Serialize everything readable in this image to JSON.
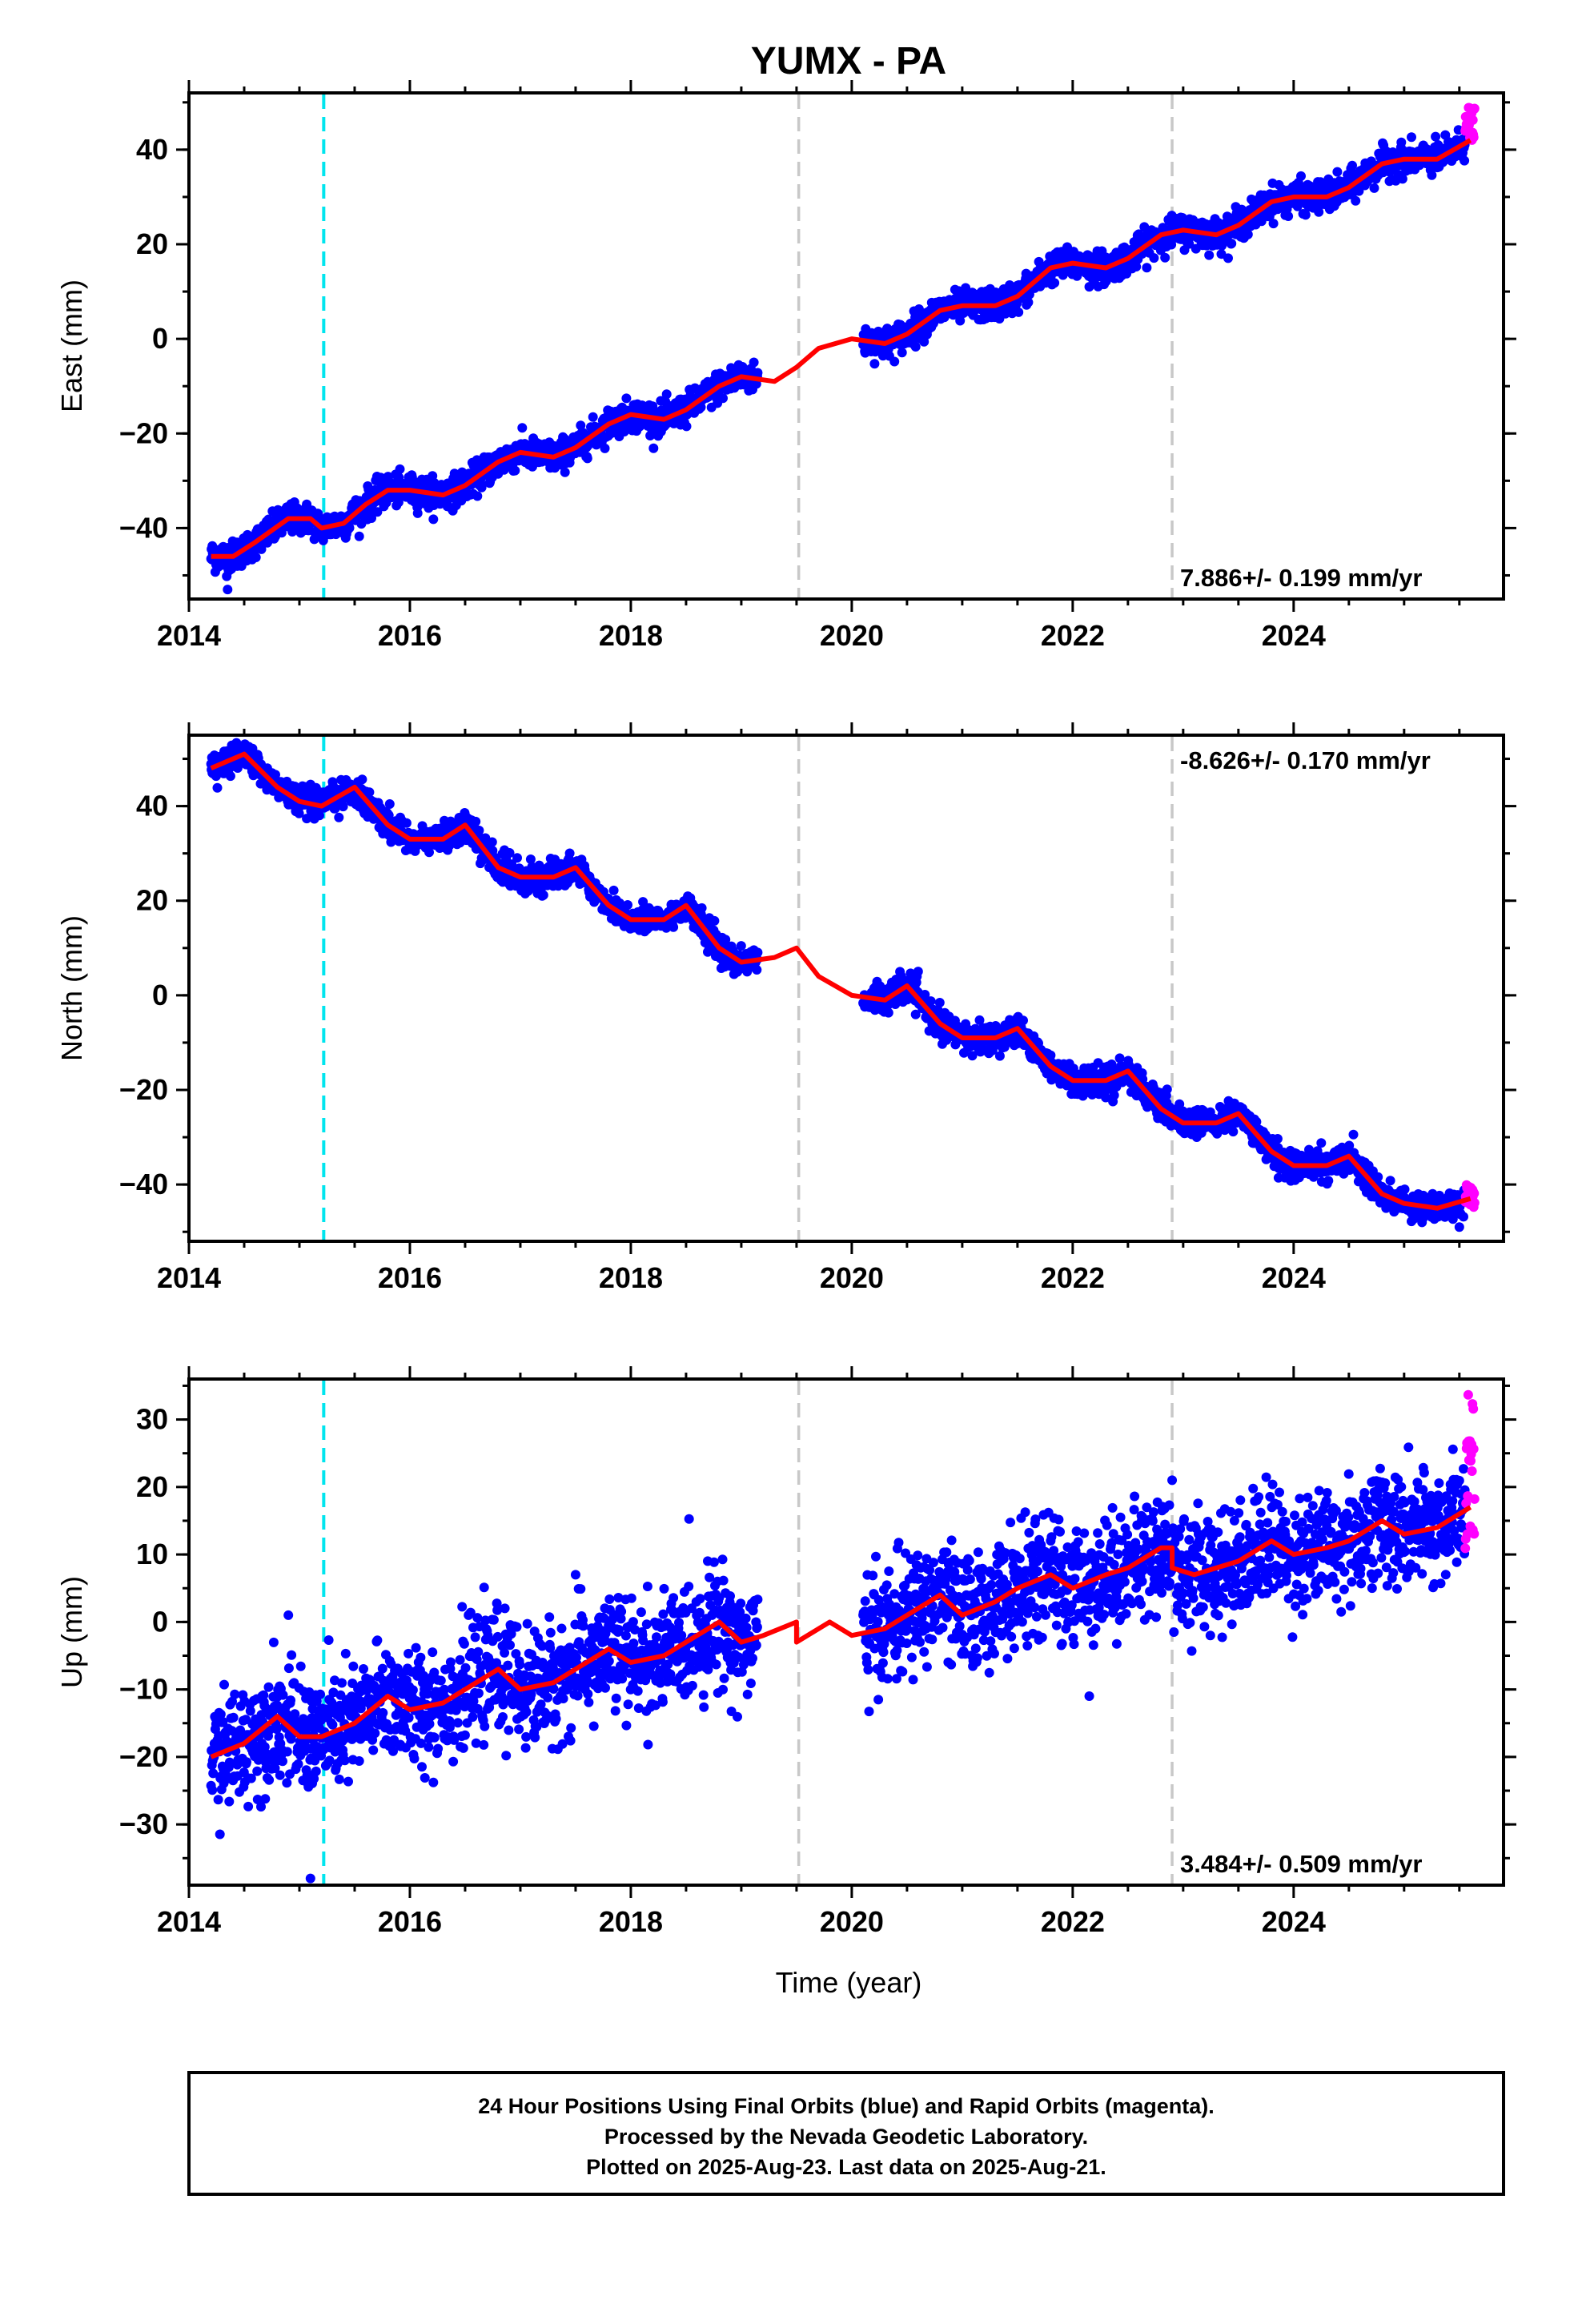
{
  "title": "YUMX - PA",
  "xlabel": "Time (year)",
  "colors": {
    "final": "#0000ff",
    "rapid": "#ff00ff",
    "model": "#ff0000",
    "antenna_change": "#00e5ee",
    "equipment_change": "#c8c8c8",
    "frame": "#000000"
  },
  "chart_data": [
    {
      "type": "scatter",
      "panel": "east",
      "ylabel": "East (mm)",
      "rate_text": "7.886+/- 0.199 mm/yr",
      "rate_position": "bottom-right",
      "xlim": [
        2014.0,
        2025.9
      ],
      "ylim": [
        -55,
        52
      ],
      "xticks": [
        "2014",
        "2016",
        "2018",
        "2020",
        "2022",
        "2024"
      ],
      "yticks": [
        "40",
        "20",
        "0",
        "−20",
        "−40"
      ],
      "ytick_values": [
        40,
        20,
        0,
        -20,
        -40
      ],
      "scatter_spread": 1.6,
      "data_gap": [
        2019.15,
        2020.1
      ],
      "last_data": 2025.64,
      "rapid_start": 2025.55,
      "rapid_range": [
        42,
        49
      ],
      "outliers": [
        [
          2014.35,
          -53
        ],
        [
          2022.15,
          11
        ]
      ],
      "model": {
        "x": [
          2014.2,
          2014.4,
          2014.6,
          2014.9,
          2015.1,
          2015.2,
          2015.4,
          2015.6,
          2015.8,
          2016.0,
          2016.3,
          2016.5,
          2016.8,
          2017.0,
          2017.3,
          2017.5,
          2017.8,
          2018.0,
          2018.3,
          2018.5,
          2018.8,
          2019.0,
          2019.3,
          2019.5,
          2019.7,
          2020.0,
          2020.3,
          2020.5,
          2020.8,
          2021.0,
          2021.3,
          2021.5,
          2021.8,
          2022.0,
          2022.3,
          2022.5,
          2022.8,
          2023.0,
          2023.3,
          2023.5,
          2023.8,
          2024.0,
          2024.3,
          2024.5,
          2024.8,
          2025.0,
          2025.3,
          2025.6
        ],
        "y": [
          -46,
          -46,
          -43,
          -38,
          -38,
          -40,
          -39,
          -35,
          -32,
          -32,
          -33,
          -31,
          -26,
          -24,
          -25,
          -23,
          -18,
          -16,
          -17,
          -15,
          -10,
          -8,
          -9,
          -6,
          -2,
          0,
          -1,
          1,
          6,
          7,
          7,
          9,
          15,
          16,
          15,
          17,
          22,
          23,
          22,
          24,
          29,
          30,
          30,
          32,
          37,
          38,
          38,
          42
        ]
      }
    },
    {
      "type": "scatter",
      "panel": "north",
      "ylabel": "North (mm)",
      "rate_text": "-8.626+/- 0.170 mm/yr",
      "rate_position": "top-right",
      "xlim": [
        2014.0,
        2025.9
      ],
      "ylim": [
        -52,
        55
      ],
      "xticks": [
        "2014",
        "2016",
        "2018",
        "2020",
        "2022",
        "2024"
      ],
      "yticks": [
        "40",
        "20",
        "0",
        "−20",
        "−40"
      ],
      "ytick_values": [
        40,
        20,
        0,
        -20,
        -40
      ],
      "scatter_spread": 1.5,
      "data_gap": [
        2019.15,
        2020.1
      ],
      "last_data": 2025.64,
      "rapid_start": 2025.55,
      "rapid_range": [
        -45,
        -40
      ],
      "outliers": [
        [
          2025.5,
          -49
        ]
      ],
      "model": {
        "x": [
          2014.2,
          2014.5,
          2014.8,
          2015.0,
          2015.2,
          2015.5,
          2015.8,
          2016.0,
          2016.3,
          2016.5,
          2016.8,
          2017.0,
          2017.3,
          2017.5,
          2017.8,
          2018.0,
          2018.3,
          2018.5,
          2018.8,
          2019.0,
          2019.3,
          2019.5,
          2019.7,
          2020.0,
          2020.3,
          2020.5,
          2020.8,
          2021.0,
          2021.3,
          2021.5,
          2021.8,
          2022.0,
          2022.3,
          2022.5,
          2022.8,
          2023.0,
          2023.3,
          2023.5,
          2023.8,
          2024.0,
          2024.3,
          2024.5,
          2024.8,
          2025.0,
          2025.3,
          2025.6
        ],
        "y": [
          48,
          51,
          44,
          41,
          40,
          44,
          36,
          33,
          33,
          36,
          27,
          25,
          25,
          27,
          19,
          16,
          16,
          19,
          10,
          7,
          8,
          10,
          4,
          0,
          -1,
          2,
          -6,
          -9,
          -9,
          -7,
          -15,
          -18,
          -18,
          -16,
          -24,
          -27,
          -27,
          -25,
          -33,
          -36,
          -36,
          -34,
          -42,
          -44,
          -45,
          -43
        ]
      }
    },
    {
      "type": "scatter",
      "panel": "up",
      "ylabel": "Up (mm)",
      "rate_text": "3.484+/- 0.509 mm/yr",
      "rate_position": "bottom-right",
      "xlim": [
        2014.0,
        2025.9
      ],
      "ylim": [
        -39,
        36
      ],
      "xticks": [
        "2014",
        "2016",
        "2018",
        "2020",
        "2022",
        "2024"
      ],
      "yticks": [
        "30",
        "20",
        "10",
        "0",
        "−10",
        "−20",
        "−30"
      ],
      "ytick_values": [
        30,
        20,
        10,
        0,
        -10,
        -20,
        -30
      ],
      "scatter_spread": 4.2,
      "data_gap": [
        2019.15,
        2020.1
      ],
      "last_data": 2025.64,
      "rapid_start": 2025.55,
      "rapid_range": [
        10,
        35
      ],
      "outliers": [
        [
          2015.1,
          -38
        ],
        [
          2014.9,
          1
        ],
        [
          2017.5,
          7
        ],
        [
          2022.15,
          -11
        ],
        [
          2022.9,
          21
        ]
      ],
      "model": {
        "x": [
          2014.2,
          2014.5,
          2014.8,
          2015.0,
          2015.2,
          2015.5,
          2015.8,
          2016.0,
          2016.3,
          2016.5,
          2016.8,
          2017.0,
          2017.3,
          2017.5,
          2017.8,
          2018.0,
          2018.3,
          2018.5,
          2018.8,
          2019.0,
          2019.2,
          2019.5,
          2019.5,
          2019.8,
          2020.0,
          2020.3,
          2020.5,
          2020.8,
          2021.0,
          2021.3,
          2021.5,
          2021.8,
          2022.0,
          2022.3,
          2022.5,
          2022.8,
          2022.9,
          2022.9,
          2023.1,
          2023.3,
          2023.5,
          2023.8,
          2024.0,
          2024.3,
          2024.5,
          2024.8,
          2025.0,
          2025.3,
          2025.6
        ],
        "y": [
          -20,
          -18,
          -14,
          -17,
          -17,
          -15,
          -11,
          -13,
          -12,
          -10,
          -7,
          -10,
          -9,
          -7,
          -4,
          -6,
          -5,
          -3,
          0,
          -3,
          -2,
          0,
          -3,
          0,
          -2,
          -1,
          1,
          4,
          1,
          3,
          5,
          7,
          5,
          7,
          8,
          11,
          11,
          8,
          7,
          8,
          9,
          12,
          10,
          11,
          12,
          15,
          13,
          14,
          17
        ]
      }
    }
  ],
  "event_lines": [
    {
      "year": 2015.22,
      "kind": "antenna_change"
    },
    {
      "year": 2019.52,
      "kind": "equipment_change"
    },
    {
      "year": 2022.9,
      "kind": "equipment_change"
    }
  ],
  "caption": {
    "line1": "24 Hour Positions Using Final Orbits (blue) and Rapid Orbits (magenta).",
    "line2": "Processed by the Nevada Geodetic Laboratory.",
    "line3": "Plotted on 2025-Aug-23. Last data on 2025-Aug-21."
  }
}
